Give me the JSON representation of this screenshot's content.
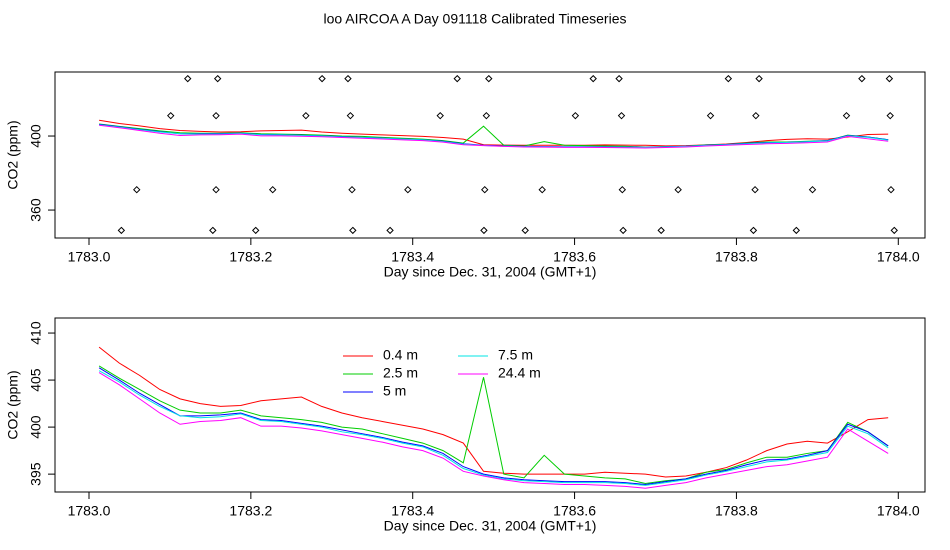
{
  "title": "loo AIRCOA A  Day 091118  Calibrated Timeseries",
  "chart_data": [
    {
      "type": "scatter",
      "xlabel": "Day since Dec. 31, 2004 (GMT+1)",
      "ylabel": "CO2 (ppm)",
      "xlim": [
        1782.958,
        1784.033
      ],
      "ylim": [
        344.9,
        434.6
      ],
      "xticks": [
        {
          "value": 1783,
          "label": "1783.0"
        },
        1783.2,
        1783.4,
        1783.6,
        1783.8,
        {
          "value": 1784,
          "label": "1784.0"
        }
      ],
      "yticks": [
        360,
        400
      ],
      "color": "#000000",
      "x": [
        1783.04,
        1783.059,
        1783.101,
        1783.122,
        1783.153,
        1783.157,
        1783.157,
        1783.159,
        1783.206,
        1783.227,
        1783.268,
        1783.288,
        1783.32,
        1783.323,
        1783.325,
        1783.326,
        1783.372,
        1783.394,
        1783.434,
        1783.455,
        1783.488,
        1783.489,
        1783.491,
        1783.494,
        1783.539,
        1783.56,
        1783.601,
        1783.623,
        1783.655,
        1783.658,
        1783.659,
        1783.66,
        1783.707,
        1783.728,
        1783.768,
        1783.79,
        1783.821,
        1783.823,
        1783.824,
        1783.828,
        1783.874,
        1783.894,
        1783.936,
        1783.955,
        1783.989,
        1783.99,
        1783.991,
        1783.995
      ],
      "values": [
        349,
        371,
        411,
        431,
        349,
        411,
        371,
        431,
        349,
        371,
        411,
        431,
        431,
        411,
        371,
        349,
        349,
        371,
        411,
        431,
        349,
        371,
        411,
        431,
        349,
        371,
        411,
        431,
        431,
        411,
        371,
        349,
        349,
        371,
        411,
        431,
        349,
        371,
        411,
        431,
        349,
        371,
        411,
        431,
        431,
        411,
        371,
        349
      ]
    },
    {
      "type": "line",
      "xlabel": "Day since Dec. 31, 2004 (GMT+1)",
      "ylabel": "CO2 (ppm)",
      "xlim": [
        1782.958,
        1784.033
      ],
      "ylim": [
        393.1,
        411.6
      ],
      "xticks": [
        {
          "value": 1783,
          "label": "1783.0"
        },
        1783.2,
        1783.4,
        1783.6,
        1783.8,
        {
          "value": 1784,
          "label": "1784.0"
        }
      ],
      "yticks": [
        395,
        400,
        405,
        410
      ],
      "legend": "top",
      "x": [
        1783.0125,
        1783.0375,
        1783.0625,
        1783.0875,
        1783.1125,
        1783.1375,
        1783.1625,
        1783.1875,
        1783.2125,
        1783.2375,
        1783.2625,
        1783.2875,
        1783.3125,
        1783.3375,
        1783.3625,
        1783.3875,
        1783.4125,
        1783.4375,
        1783.4625,
        1783.4875,
        1783.5125,
        1783.5375,
        1783.5625,
        1783.5875,
        1783.6125,
        1783.6375,
        1783.6625,
        1783.6875,
        1783.7125,
        1783.7375,
        1783.7625,
        1783.7875,
        1783.8125,
        1783.8375,
        1783.8625,
        1783.8875,
        1783.9125,
        1783.9375,
        1783.9625,
        1783.9875
      ],
      "series": [
        {
          "name": "0.4 m",
          "color": "#ff0000",
          "values": [
            408.5,
            406.8,
            405.5,
            404,
            403,
            402.5,
            402.2,
            402.3,
            402.8,
            403,
            403.2,
            402.2,
            401.5,
            401,
            400.6,
            400.2,
            399.8,
            399.2,
            398.3,
            395.3,
            395.1,
            395,
            395,
            395,
            395,
            395.2,
            395.1,
            395,
            394.7,
            394.8,
            395.2,
            395.7,
            396.5,
            397.5,
            398.2,
            398.5,
            398.3,
            399.5,
            400.8,
            401
          ]
        },
        {
          "name": "2.5 m",
          "color": "#00cd00",
          "values": [
            406.5,
            405.2,
            404,
            402.8,
            401.8,
            401.5,
            401.5,
            401.8,
            401.2,
            401,
            400.8,
            400.5,
            400,
            399.8,
            399.3,
            398.8,
            398.3,
            397.5,
            396.2,
            405.3,
            395,
            394.6,
            397,
            395,
            394.8,
            394.6,
            394.5,
            394,
            394.3,
            394.5,
            395.2,
            395.5,
            396.2,
            396.8,
            396.8,
            397.2,
            397.5,
            400.5,
            399.5,
            398
          ]
        },
        {
          "name": "5 m",
          "color": "#0000ff",
          "values": [
            406.3,
            405,
            403.6,
            402.4,
            401.2,
            401.2,
            401.3,
            401.5,
            400.8,
            400.7,
            400.4,
            400.1,
            399.7,
            399.3,
            398.9,
            398.4,
            398,
            397.2,
            395.8,
            395,
            394.6,
            394.4,
            394.3,
            394.2,
            394.2,
            394.2,
            394.1,
            393.9,
            394.2,
            394.5,
            395,
            395.4,
            396,
            396.5,
            396.6,
            397,
            397.5,
            400.3,
            399.5,
            398
          ]
        },
        {
          "name": "7.5 m",
          "color": "#00e5e5",
          "values": [
            406,
            404.8,
            403.4,
            402.2,
            401.2,
            401,
            401.1,
            401.4,
            400.7,
            400.6,
            400.3,
            400,
            399.5,
            399.2,
            398.8,
            398.3,
            397.9,
            397,
            395.6,
            394.9,
            394.5,
            394.3,
            394.2,
            394.1,
            394.1,
            394.1,
            394,
            393.8,
            394.1,
            394.4,
            394.9,
            395.3,
            395.8,
            396.3,
            396.5,
            396.9,
            397.3,
            400.1,
            399.3,
            397.8
          ]
        },
        {
          "name": "24.4 m",
          "color": "#ff00ff",
          "values": [
            405.8,
            404.5,
            403,
            401.5,
            400.3,
            400.6,
            400.7,
            401,
            400.1,
            400.1,
            399.9,
            399.6,
            399.2,
            398.8,
            398.4,
            397.9,
            397.5,
            396.7,
            395.3,
            394.8,
            394.4,
            394.1,
            394,
            393.9,
            393.9,
            393.8,
            393.7,
            393.5,
            393.8,
            394.1,
            394.6,
            395,
            395.4,
            395.8,
            396,
            396.4,
            396.8,
            399.8,
            398.5,
            397.2
          ]
        }
      ]
    }
  ]
}
